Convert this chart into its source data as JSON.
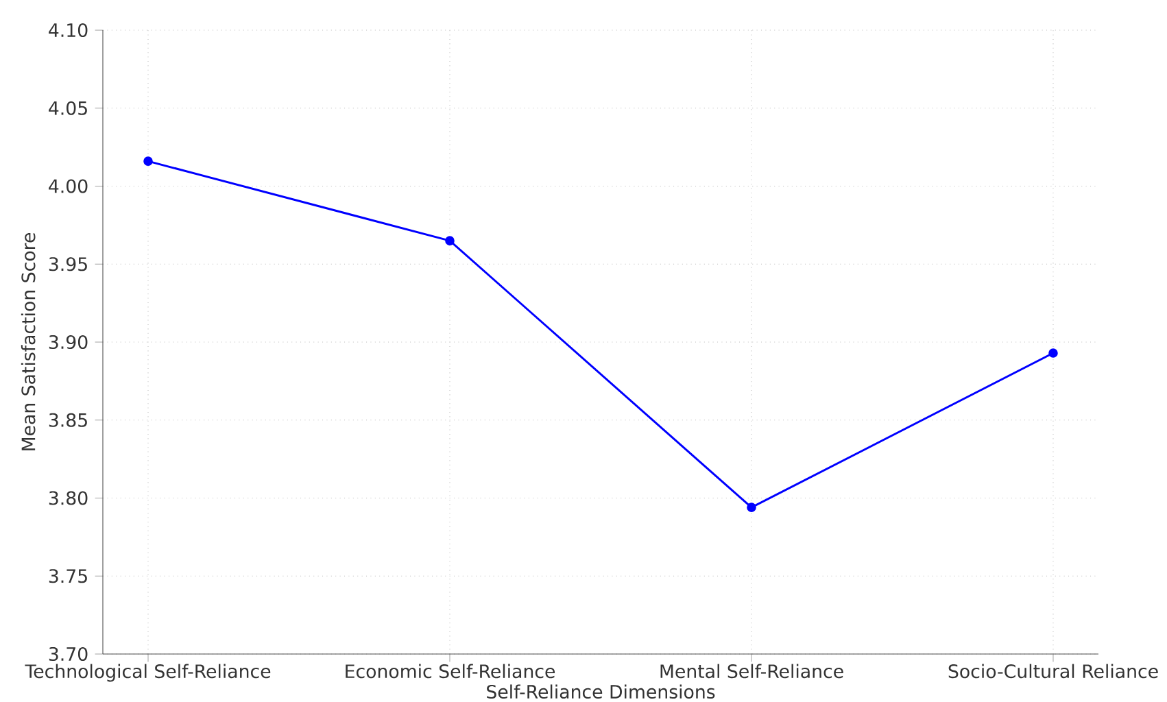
{
  "chart_data": {
    "type": "line",
    "xlabel": "Self-Reliance Dimensions",
    "ylabel": "Mean Satisfaction Score",
    "categories": [
      "Technological Self-Reliance",
      "Economic Self-Reliance",
      "Mental Self-Reliance",
      "Socio-Cultural Reliance"
    ],
    "series": [
      {
        "color": "#0000ff",
        "values": [
          4.016,
          3.965,
          3.794,
          3.893
        ]
      }
    ],
    "ylim": [
      3.7,
      4.1
    ],
    "yticks": [
      {
        "value": 3.7,
        "label": "3.70"
      },
      {
        "value": 3.75,
        "label": "3.75"
      },
      {
        "value": 3.8,
        "label": "3.80"
      },
      {
        "value": 3.85,
        "label": "3.85"
      },
      {
        "value": 3.9,
        "label": "3.90"
      },
      {
        "value": 3.95,
        "label": "3.95"
      },
      {
        "value": 4.0,
        "label": "4.00"
      },
      {
        "value": 4.05,
        "label": "4.05"
      },
      {
        "value": 4.1,
        "label": "4.10"
      }
    ],
    "grid": true,
    "marker": "circle",
    "line_style": "solid"
  }
}
